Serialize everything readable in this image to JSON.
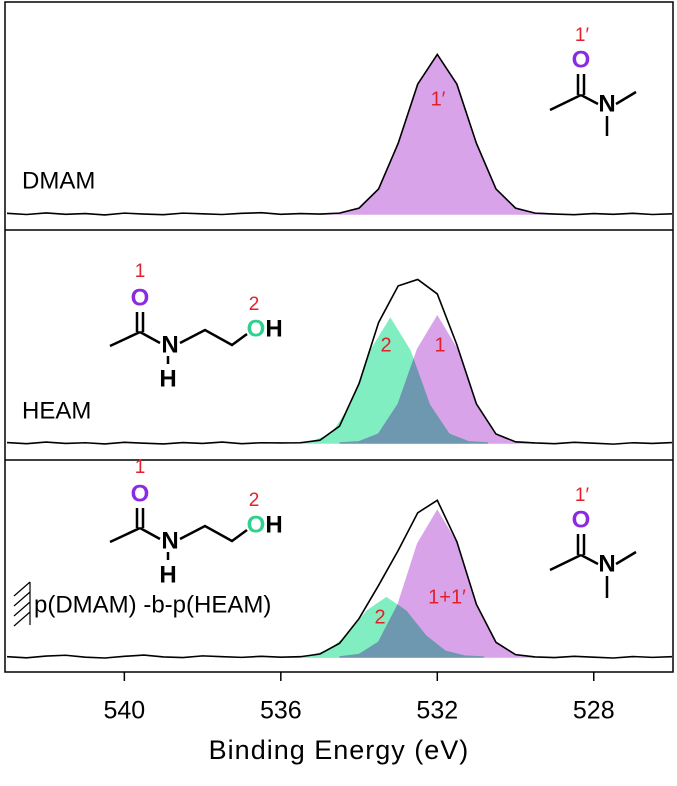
{
  "chart_data": {
    "type": "area",
    "xlabel": "Binding Energy (eV)",
    "xlim": [
      543,
      526
    ],
    "xticks": [
      540,
      536,
      532,
      528
    ],
    "ylim": [
      0,
      100
    ],
    "panels": [
      {
        "label": "DMAM",
        "molecules": [
          {
            "atoms": [
              "O",
              "N"
            ],
            "site_labels": [
              "1′"
            ]
          }
        ],
        "series": [
          {
            "label": "1′",
            "color": "#d9a3ea",
            "x": [
              535,
              534.5,
              534,
              533.5,
              533,
              532.5,
              532,
              531.5,
              531,
              530.5,
              530,
              529.5,
              529
            ],
            "values": [
              7,
              7.4,
              9.6,
              18,
              38,
              64,
              77,
              64,
              38,
              18,
              9.6,
              7.4,
              7
            ]
          }
        ],
        "raw": {
          "color": "#000000",
          "x": [
            543,
            542.5,
            542,
            541.5,
            541,
            540.5,
            540,
            539.5,
            539,
            538.5,
            538,
            537.5,
            537,
            536.5,
            536,
            535.5,
            535,
            534.5,
            534,
            533.5,
            533,
            532.5,
            532,
            531.5,
            531,
            530.5,
            530,
            529.5,
            529,
            528.5,
            528,
            527.5,
            527,
            526.5,
            526
          ],
          "values": [
            7.3,
            6.8,
            7.5,
            6.9,
            7.2,
            6.6,
            7.4,
            7.0,
            6.7,
            7.4,
            7.1,
            6.8,
            7.3,
            7.6,
            6.9,
            7.2,
            7,
            7.4,
            9.6,
            18,
            38,
            64,
            77,
            64,
            38,
            18,
            9.6,
            7.4,
            7,
            6.7,
            7.2,
            6.9,
            7.3,
            6.8,
            7.1
          ]
        }
      },
      {
        "label": "HEAM",
        "molecules": [
          {
            "atoms": [
              "O",
              "N",
              "H",
              "O",
              "H"
            ],
            "site_labels": [
              "1",
              "2"
            ]
          }
        ],
        "series": [
          {
            "label": "2",
            "color": "#80eec0",
            "x": [
              535.7,
              535.2,
              534.7,
              534.2,
              533.7,
              533.2,
              532.7,
              532.2,
              531.7,
              531.2,
              530.7
            ],
            "values": [
              7.4,
              7.9,
              11.2,
              23.9,
              47.6,
              61.4,
              47.6,
              23.9,
              11.2,
              7.9,
              7.4
            ]
          },
          {
            "label": "1",
            "color": "#d9a3ea",
            "x": [
              534.5,
              534,
              533.5,
              533,
              532.5,
              532,
              531.5,
              531,
              530.5,
              530,
              529.5
            ],
            "values": [
              7.4,
              7.9,
              11.3,
              24.2,
              48.3,
              62.4,
              48.3,
              24.2,
              11.3,
              7.9,
              7.4
            ]
          }
        ],
        "raw": {
          "color": "#000000",
          "x": [
            543,
            542.5,
            542,
            541.5,
            541,
            540.5,
            540,
            539.5,
            539,
            538.5,
            538,
            537.5,
            537,
            536.5,
            536,
            535.5,
            535,
            534.5,
            534,
            533.5,
            533,
            532.5,
            532,
            531.5,
            531,
            530.5,
            530,
            529.5,
            529,
            528.5,
            528,
            527.5,
            527,
            526.5,
            526
          ],
          "values": [
            7.6,
            7.1,
            7.8,
            7.2,
            7.5,
            7.0,
            7.7,
            7.3,
            7.0,
            7.6,
            7.2,
            7.8,
            7.1,
            7.5,
            7.4,
            7.5,
            8.6,
            14.7,
            33.2,
            59.8,
            75.7,
            78.5,
            72.2,
            50.1,
            24.4,
            11.3,
            7.9,
            7.4,
            7.1,
            7.7,
            7.3,
            6.9,
            7.5,
            7.2,
            7.6
          ]
        }
      },
      {
        "label": "p(DMAM) -b-p(HEAM)",
        "molecules": [
          {
            "atoms": [
              "O",
              "N",
              "H",
              "O",
              "H"
            ],
            "site_labels": [
              "1",
              "2"
            ]
          },
          {
            "atoms": [
              "O",
              "N"
            ],
            "site_labels": [
              "1′"
            ]
          }
        ],
        "series": [
          {
            "label": "2",
            "color": "#80eec0",
            "x": [
              535.8,
              535.3,
              534.8,
              534.3,
              533.8,
              533.3,
              532.8,
              532.3,
              531.8,
              531.3,
              530.8
            ],
            "values": [
              7,
              7.5,
              9.8,
              17.1,
              28.7,
              35,
              28.7,
              17.1,
              9.8,
              7.5,
              7
            ]
          },
          {
            "label": "1+1′",
            "color": "#d9a3ea",
            "x": [
              534.5,
              534,
              533.5,
              533,
              532.5,
              532,
              531.5,
              531,
              530.5,
              530,
              529.5
            ],
            "values": [
              7.1,
              8.2,
              14,
              31.8,
              60.5,
              76,
              60.5,
              31.8,
              14,
              8.2,
              7.1
            ]
          }
        ],
        "raw": {
          "color": "#000000",
          "x": [
            543,
            542.5,
            542,
            541.5,
            541,
            540.5,
            540,
            539.5,
            539,
            538.5,
            538,
            537.5,
            537,
            536.5,
            536,
            535.5,
            535,
            534.5,
            534,
            533.5,
            533,
            532.5,
            532,
            531.5,
            531,
            530.5,
            530,
            529.5,
            529,
            528.5,
            528,
            527.5,
            527,
            526.5,
            526
          ],
          "values": [
            7.2,
            6.7,
            7.5,
            7.9,
            7.0,
            6.6,
            7.4,
            8.0,
            7.1,
            6.8,
            7.6,
            7.2,
            6.9,
            7.4,
            7,
            7.2,
            8.5,
            13.5,
            25.2,
            40.9,
            57.3,
            75.1,
            81,
            61.5,
            31.9,
            14,
            8.2,
            7.1,
            6.8,
            7.4,
            7.0,
            6.6,
            7.3,
            6.9,
            7.2
          ]
        }
      }
    ]
  }
}
